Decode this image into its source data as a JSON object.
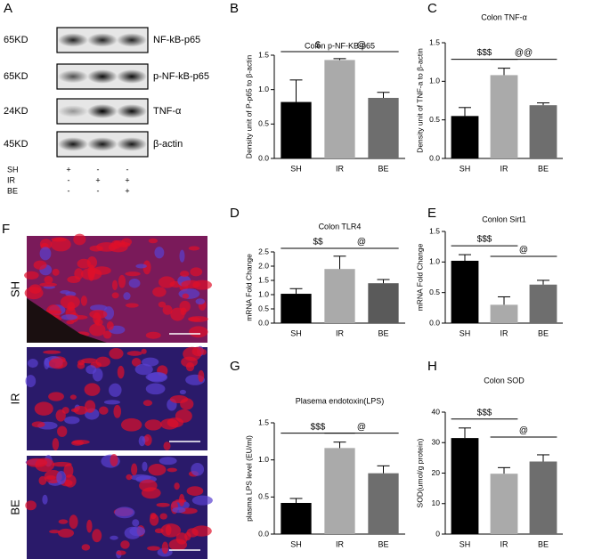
{
  "blot": {
    "panel": "A",
    "rows": [
      {
        "size": "65KD",
        "protein": "NF-kB-p65"
      },
      {
        "size": "65KD",
        "protein": "p-NF-kB-p65"
      },
      {
        "size": "24KD",
        "protein": "TNF-α"
      },
      {
        "size": "45KD",
        "protein": "β-actin"
      }
    ],
    "treatments": [
      {
        "group": "SH",
        "signs": [
          "+",
          "-",
          "-"
        ]
      },
      {
        "group": "IR",
        "signs": [
          "-",
          "+",
          "+"
        ]
      },
      {
        "group": "BE",
        "signs": [
          "-",
          "-",
          "+"
        ]
      }
    ]
  },
  "histology": {
    "panel": "F",
    "groups": [
      "SH",
      "IR",
      "BE"
    ]
  },
  "chart_data": [
    {
      "type": "bar",
      "panel": "B",
      "title": "Colon  p-NF-KB-p65",
      "ylabel": "Density unit of P-p65 to β-actin",
      "categories": [
        "SH",
        "IR",
        "BE"
      ],
      "values": [
        0.82,
        1.43,
        0.88
      ],
      "errors": [
        0.32,
        0.02,
        0.08
      ],
      "colors": [
        "#000000",
        "#aaaaaa",
        "#6e6e6e"
      ],
      "ylim": [
        0,
        1.5
      ],
      "yticks": [
        {
          "value": 0,
          "label": "0.0"
        },
        0.5,
        {
          "value": 1,
          "label": "1.0"
        },
        1.5
      ],
      "comparisons": [
        {
          "label": "$",
          "groups": [
            "SH",
            "IR"
          ]
        },
        {
          "label": "@",
          "groups": [
            "IR",
            "BE"
          ]
        }
      ]
    },
    {
      "type": "bar",
      "panel": "C",
      "title": "Colon TNF-α",
      "ylabel": "Density unit of TNF-a to β-actin",
      "categories": [
        "SH",
        "IR",
        "BE"
      ],
      "values": [
        0.55,
        1.08,
        0.69
      ],
      "errors": [
        0.11,
        0.09,
        0.03
      ],
      "colors": [
        "#000000",
        "#aaaaaa",
        "#6e6e6e"
      ],
      "ylim": [
        0,
        1.5
      ],
      "yticks": [
        {
          "value": 0,
          "label": "0.0"
        },
        0.5,
        {
          "value": 1,
          "label": "1.0"
        },
        1.5
      ],
      "comparisons": [
        {
          "label": "$$$",
          "groups": [
            "SH",
            "IR"
          ]
        },
        {
          "label": "@@",
          "groups": [
            "IR",
            "BE"
          ]
        }
      ]
    },
    {
      "type": "bar",
      "panel": "D",
      "title": "Colon TLR4",
      "ylabel": "mRNA Fold Change",
      "categories": [
        "SH",
        "IR",
        "BE"
      ],
      "values": [
        1.03,
        1.9,
        1.4
      ],
      "errors": [
        0.18,
        0.45,
        0.13
      ],
      "colors": [
        "#000000",
        "#aaaaaa",
        "#5a5a5a"
      ],
      "ylim": [
        0,
        2.5
      ],
      "yticks": [
        {
          "value": 0,
          "label": "0.0"
        },
        0.5,
        {
          "value": 1,
          "label": "1.0"
        },
        1.5,
        {
          "value": 2,
          "label": "2.0"
        },
        2.5
      ],
      "comparisons": [
        {
          "label": "$$",
          "groups": [
            "SH",
            "IR"
          ]
        },
        {
          "label": "@",
          "groups": [
            "IR",
            "BE"
          ]
        }
      ]
    },
    {
      "type": "bar",
      "panel": "E",
      "title": "Conlon Sirt1",
      "ylabel": "mRNA Fold Change",
      "categories": [
        "SH",
        "IR",
        "BE"
      ],
      "values": [
        1.02,
        0.3,
        0.63
      ],
      "errors": [
        0.1,
        0.13,
        0.07
      ],
      "colors": [
        "#000000",
        "#aaaaaa",
        "#6e6e6e"
      ],
      "ylim": [
        0,
        1.5
      ],
      "yticks": [
        {
          "value": 0,
          "label": "0.0"
        },
        0.5,
        {
          "value": 1,
          "label": "1.0"
        },
        1.5
      ],
      "comparisons": [
        {
          "label": "$$$",
          "groups": [
            "SH",
            "IR"
          ]
        },
        {
          "label": "@",
          "groups": [
            "IR",
            "BE"
          ]
        }
      ]
    },
    {
      "type": "bar",
      "panel": "G",
      "title": "Plasema endotoxin(LPS)",
      "ylabel": "plasma LPS level (EU/ml)",
      "categories": [
        "SH",
        "IR",
        "BE"
      ],
      "values": [
        0.42,
        1.16,
        0.82
      ],
      "errors": [
        0.06,
        0.08,
        0.1
      ],
      "colors": [
        "#000000",
        "#aaaaaa",
        "#6e6e6e"
      ],
      "ylim": [
        0,
        1.5
      ],
      "yticks": [
        {
          "value": 0,
          "label": "0.0"
        },
        0.5,
        {
          "value": 1,
          "label": "1.0"
        },
        1.5
      ],
      "comparisons": [
        {
          "label": "$$$",
          "groups": [
            "SH",
            "IR"
          ]
        },
        {
          "label": "@",
          "groups": [
            "IR",
            "BE"
          ]
        }
      ]
    },
    {
      "type": "bar",
      "panel": "H",
      "title": "Colon SOD",
      "ylabel": "SOD(umol/g protein)",
      "categories": [
        "SH",
        "IR",
        "BE"
      ],
      "values": [
        31.5,
        19.8,
        23.8
      ],
      "errors": [
        3.3,
        2,
        2.2
      ],
      "colors": [
        "#000000",
        "#aaaaaa",
        "#6e6e6e"
      ],
      "ylim": [
        0,
        40
      ],
      "yticks": [
        0,
        10,
        20,
        30,
        40
      ],
      "comparisons": [
        {
          "label": "$$$",
          "groups": [
            "SH",
            "IR"
          ]
        },
        {
          "label": "@",
          "groups": [
            "IR",
            "BE"
          ]
        }
      ]
    }
  ]
}
